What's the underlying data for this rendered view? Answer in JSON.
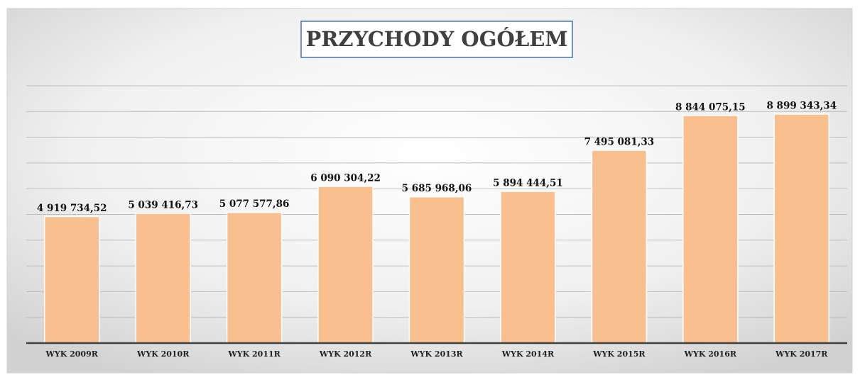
{
  "chart_data": {
    "type": "bar",
    "title": "PRZYCHODY OGÓŁEM",
    "categories": [
      "WYK 2009R",
      "WYK 2010R",
      "WYK 2011R",
      "WYK 2012R",
      "WYK 2013R",
      "WYK 2014R",
      "WYK 2015R",
      "WYK 2016R",
      "WYK 2017R"
    ],
    "values": [
      4919734.52,
      5039416.73,
      5077577.86,
      6090304.22,
      5685968.06,
      5894444.51,
      7495081.33,
      8844075.15,
      8899343.34
    ],
    "value_labels": [
      "4 919 734,52",
      "5 039 416,73",
      "5 077 577,86",
      "6 090 304,22",
      "5 685 968,06",
      "5 894 444,51",
      "7 495 081,33",
      "8 844 075,15",
      "8 899 343,34"
    ],
    "color": "#f9bf8f",
    "ylim": [
      0,
      10000000
    ],
    "yticks": [
      0,
      1000000,
      2000000,
      3000000,
      4000000,
      5000000,
      6000000,
      7000000,
      8000000,
      9000000,
      10000000
    ],
    "grid": true
  }
}
